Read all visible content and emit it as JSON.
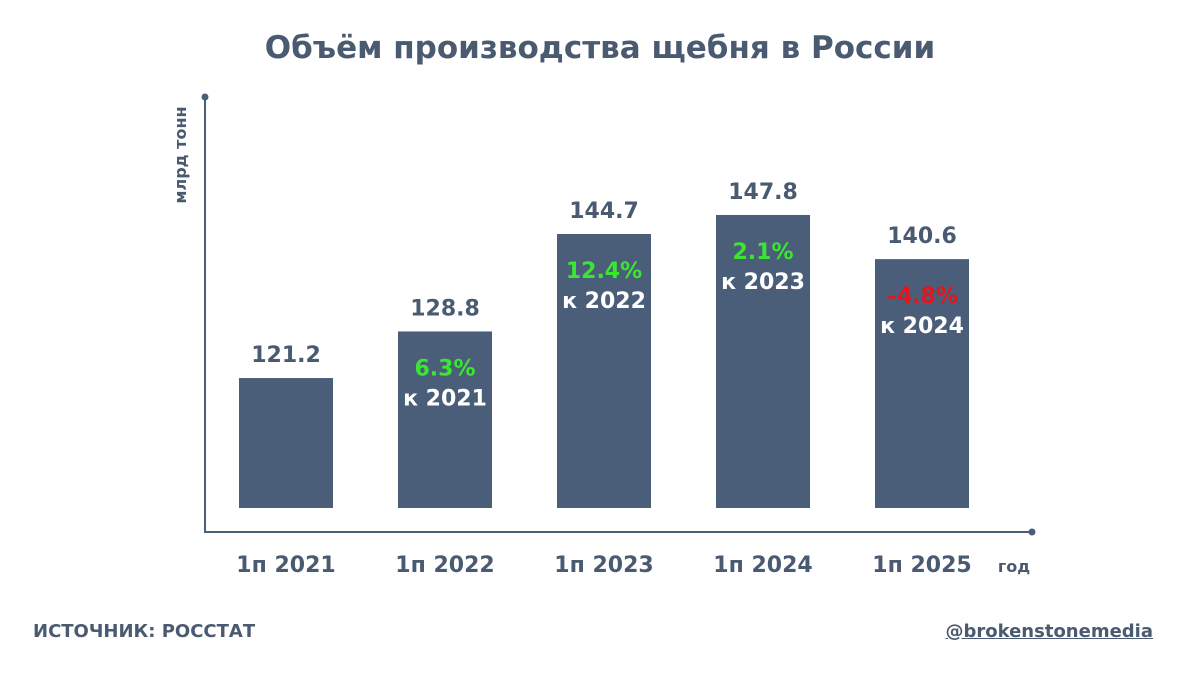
{
  "chart_data": {
    "type": "bar",
    "title": "Объём производства щебня в России",
    "xlabel": "год",
    "ylabel": "млрд тонн",
    "categories": [
      "1п 2021",
      "1п 2022",
      "1п 2023",
      "1п 2024",
      "1п 2025"
    ],
    "values": [
      121.2,
      128.8,
      144.7,
      147.8,
      140.6
    ],
    "value_labels": [
      "121.2",
      "128.8",
      "144.7",
      "147.8",
      "140.6"
    ],
    "changes": [
      null,
      {
        "percent": "6.3%",
        "ref": "к 2021",
        "color": "#3ae632"
      },
      {
        "percent": "12.4%",
        "ref": "к 2022",
        "color": "#3ae632"
      },
      {
        "percent": "2.1%",
        "ref": "к 2023",
        "color": "#3ae632"
      },
      {
        "percent": "–4.8%",
        "ref": "к 2024",
        "color": "#e8141b"
      }
    ],
    "grid": false,
    "colors": {
      "bar": "#4b5e79",
      "text": "#4a5a70"
    }
  },
  "footer": {
    "source": "ИСТОЧНИК: РОССТАТ",
    "handle": "@brokenstonemedia"
  }
}
